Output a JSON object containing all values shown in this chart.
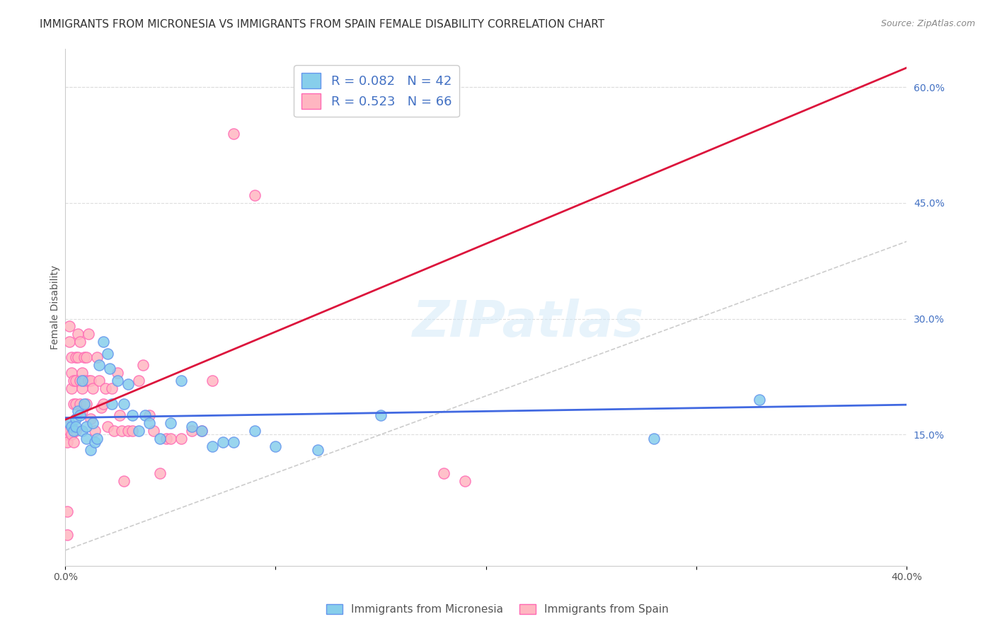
{
  "title": "IMMIGRANTS FROM MICRONESIA VS IMMIGRANTS FROM SPAIN FEMALE DISABILITY CORRELATION CHART",
  "source": "Source: ZipAtlas.com",
  "xlabel_bottom": "",
  "ylabel": "Female Disability",
  "xlim": [
    0.0,
    0.4
  ],
  "ylim": [
    -0.02,
    0.65
  ],
  "x_ticks": [
    0.0,
    0.1,
    0.2,
    0.3,
    0.4
  ],
  "x_tick_labels": [
    "0.0%",
    "",
    "",
    "",
    "40.0%"
  ],
  "y_ticks_right": [
    0.15,
    0.3,
    0.45,
    0.6
  ],
  "y_tick_labels_right": [
    "15.0%",
    "30.0%",
    "45.0%",
    "60.0%"
  ],
  "micronesia_color": "#87CEEB",
  "spain_color": "#FFB6C1",
  "micronesia_edge": "#6495ED",
  "spain_edge": "#FF69B4",
  "regression_micronesia_color": "#4169E1",
  "regression_spain_color": "#DC143C",
  "diagonal_color": "#C0C0C0",
  "R_micronesia": 0.082,
  "N_micronesia": 42,
  "R_spain": 0.523,
  "N_spain": 66,
  "legend_label_micronesia": "Immigrants from Micronesia",
  "legend_label_spain": "Immigrants from Spain",
  "watermark": "ZIPatlas",
  "micronesia_x": [
    0.002,
    0.003,
    0.004,
    0.005,
    0.005,
    0.006,
    0.007,
    0.008,
    0.008,
    0.009,
    0.01,
    0.01,
    0.012,
    0.013,
    0.014,
    0.015,
    0.016,
    0.018,
    0.02,
    0.021,
    0.022,
    0.025,
    0.028,
    0.03,
    0.032,
    0.035,
    0.038,
    0.04,
    0.045,
    0.05,
    0.055,
    0.06,
    0.065,
    0.07,
    0.075,
    0.08,
    0.09,
    0.1,
    0.12,
    0.15,
    0.28,
    0.33
  ],
  "micronesia_y": [
    0.165,
    0.16,
    0.155,
    0.17,
    0.16,
    0.18,
    0.175,
    0.155,
    0.22,
    0.19,
    0.145,
    0.16,
    0.13,
    0.165,
    0.14,
    0.145,
    0.24,
    0.27,
    0.255,
    0.235,
    0.19,
    0.22,
    0.19,
    0.215,
    0.175,
    0.155,
    0.175,
    0.165,
    0.145,
    0.165,
    0.22,
    0.16,
    0.155,
    0.135,
    0.14,
    0.14,
    0.155,
    0.135,
    0.13,
    0.175,
    0.145,
    0.195
  ],
  "spain_x": [
    0.001,
    0.001,
    0.001,
    0.002,
    0.002,
    0.002,
    0.003,
    0.003,
    0.003,
    0.003,
    0.004,
    0.004,
    0.004,
    0.005,
    0.005,
    0.005,
    0.005,
    0.006,
    0.006,
    0.007,
    0.007,
    0.007,
    0.008,
    0.008,
    0.008,
    0.009,
    0.009,
    0.01,
    0.01,
    0.011,
    0.011,
    0.012,
    0.012,
    0.013,
    0.014,
    0.015,
    0.016,
    0.017,
    0.018,
    0.019,
    0.02,
    0.022,
    0.023,
    0.025,
    0.026,
    0.027,
    0.028,
    0.03,
    0.032,
    0.035,
    0.037,
    0.04,
    0.042,
    0.045,
    0.048,
    0.05,
    0.055,
    0.06,
    0.065,
    0.07,
    0.08,
    0.09,
    0.18,
    0.19,
    0.001,
    0.001
  ],
  "spain_y": [
    0.16,
    0.15,
    0.14,
    0.29,
    0.27,
    0.155,
    0.25,
    0.23,
    0.21,
    0.15,
    0.22,
    0.19,
    0.14,
    0.25,
    0.22,
    0.19,
    0.155,
    0.28,
    0.25,
    0.27,
    0.22,
    0.19,
    0.23,
    0.21,
    0.18,
    0.25,
    0.22,
    0.25,
    0.19,
    0.28,
    0.22,
    0.22,
    0.17,
    0.21,
    0.155,
    0.25,
    0.22,
    0.185,
    0.19,
    0.21,
    0.16,
    0.21,
    0.155,
    0.23,
    0.175,
    0.155,
    0.09,
    0.155,
    0.155,
    0.22,
    0.24,
    0.175,
    0.155,
    0.1,
    0.145,
    0.145,
    0.145,
    0.155,
    0.155,
    0.22,
    0.54,
    0.46,
    0.1,
    0.09,
    0.05,
    0.02
  ],
  "bg_color": "#FFFFFF",
  "grid_color": "#DDDDDD",
  "title_fontsize": 11,
  "axis_label_fontsize": 10,
  "tick_fontsize": 10,
  "legend_fontsize": 13
}
